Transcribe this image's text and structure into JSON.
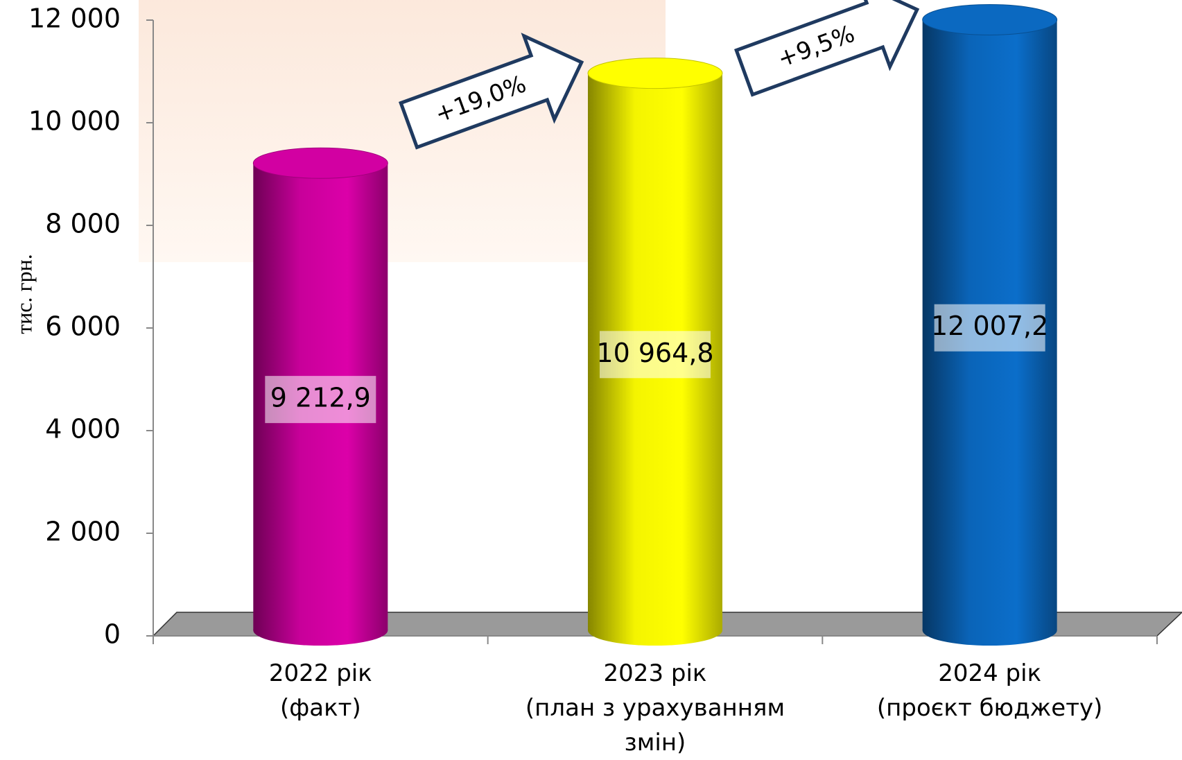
{
  "chart_data": {
    "type": "bar3d",
    "y_label": "тис. грн.",
    "categories": [
      "2022 рік\n(факт)",
      "2023 рік\n(план з урахуванням змін)",
      "2024 рік\n(проєкт бюджету)"
    ],
    "values": [
      9212.9,
      10964.8,
      12007.2
    ],
    "value_labels": [
      "9 212,9",
      "10 964,8",
      "12 007,2"
    ],
    "colors": [
      "#c8009a",
      "#f4f400",
      "#0a64b8"
    ],
    "ylim": [
      0,
      12000
    ],
    "yticks": [
      0,
      {
        "value": 2000,
        "label": "2 000"
      },
      {
        "value": 4000,
        "label": "4 000"
      },
      {
        "value": 6000,
        "label": "6 000"
      },
      {
        "value": 8000,
        "label": "8 000"
      },
      {
        "value": 10000,
        "label": "10 000"
      },
      {
        "value": 12000,
        "label": "12 000"
      }
    ],
    "annotations": [
      "+19,0%",
      "+9,5%"
    ]
  }
}
